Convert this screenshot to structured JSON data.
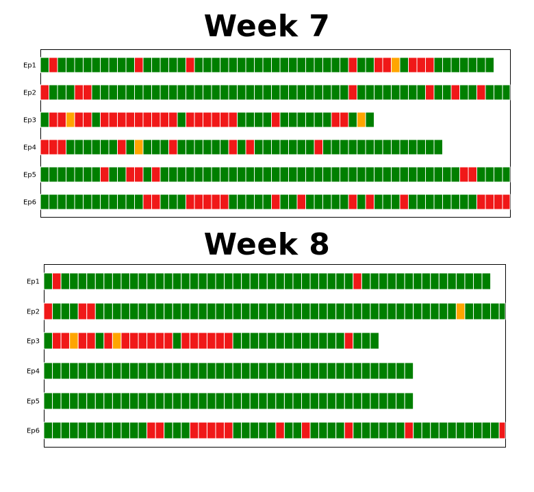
{
  "colors": {
    "green": "#007f00",
    "red": "#f01818",
    "orange": "#ffa500",
    "cell_border": "#ffffff",
    "frame": "#000000"
  },
  "chart_data": [
    {
      "type": "heatmap",
      "title": "Week 7",
      "legend": "key: G = green, R = red, O = orange (one square per item)",
      "rows": [
        {
          "label": "Ep1",
          "cells": "GRGGGGGGGGGRGGGGGRGGGGGGGGGGGGGGGGGGRGGRROGRRRGGGGGGG"
        },
        {
          "label": "Ep2",
          "cells": "RGGGRRGGGGGGGGGGGGGGGGGGGGGGGGGGGGGGRGGGGGGGGRGGRGGRGGGGGGGGGRGRRGR"
        },
        {
          "label": "Ep3",
          "cells": "GRRORRGRRRRRRRRRGRRRRRRGGGGRGGGGGGRRGOG"
        },
        {
          "label": "Ep4",
          "cells": "RRRGGGGGGRGOGGGRGGGGGGRGRGGGGGGGRGGGGGGGGGGGGGG"
        },
        {
          "label": "Ep5",
          "cells": "GGGGGGGRGGRRGRGGGGGGGGGGGGGGGGGGGGGGGGGGGGGGGGGGGRRGGGGG"
        },
        {
          "label": "Ep6",
          "cells": "GGGGGGGGGGGGRRGGGRRRRRGGGGGRGGRGGGGGRGRGGGRGGGGGGGGRRRRR"
        }
      ]
    },
    {
      "type": "heatmap",
      "title": "Week 8",
      "legend": "key: G = green, R = red, O = orange (one square per item)",
      "rows": [
        {
          "label": "Ep1",
          "cells": "GRGGGGGGGGGGGGGGGGGGGGGGGGGGGGGGGGGGRGGGGGGGGGGGGGGG"
        },
        {
          "label": "Ep2",
          "cells": "RGGGRRGGGGGGGGGGGGGGGGGGGGGGGGGGGGGGGGGGGGGGGGGGOGGGGGGGGGGGGRGG"
        },
        {
          "label": "Ep3",
          "cells": "GRRORRGRORRRRRRGRRRRRRGGGGGGGGGGGGGRGGG"
        },
        {
          "label": "Ep4",
          "cells": "GGGGGGGGGGGGGGGGGGGGGGGGGGGGGGGGGGGGGGGGGGG"
        },
        {
          "label": "Ep5",
          "cells": "GGGGGGGGGGGGGGGGGGGGGGGGGGGGGGGGGGGGGGGGGGG"
        },
        {
          "label": "Ep6",
          "cells": "GGGGGGGGGGGGRRGGGRRRRRGGGGGRGGRGGGGRGGGGGGRGGGGGGGGGGR"
        }
      ]
    }
  ]
}
